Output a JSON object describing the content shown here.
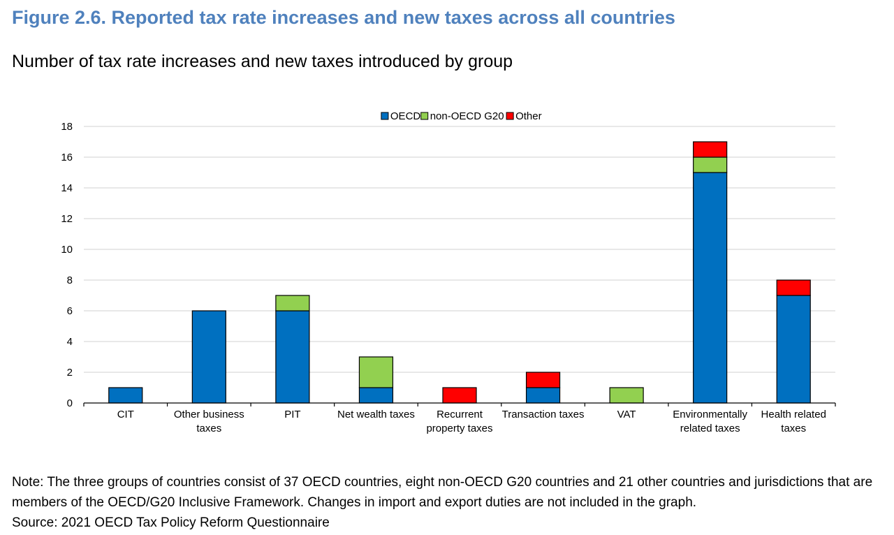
{
  "figure": {
    "title": "Figure 2.6. Reported tax rate increases and new taxes across all countries",
    "subtitle": "Number of tax rate increases and new taxes introduced by group",
    "note": "Note: The three groups of countries consist of 37 OECD countries, eight non-OECD G20 countries and 21 other countries and jurisdictions that are members of the OECD/G20 Inclusive Framework. Changes in import and export duties are not included in the graph.",
    "source": "Source: 2021 OECD Tax Policy Reform Questionnaire"
  },
  "chart_data": {
    "type": "bar",
    "stacked": true,
    "categories": [
      [
        "CIT"
      ],
      [
        "Other business",
        "taxes"
      ],
      [
        "PIT"
      ],
      [
        "Net wealth taxes"
      ],
      [
        "Recurrent",
        "property taxes"
      ],
      [
        "Transaction taxes"
      ],
      [
        "VAT"
      ],
      [
        "Environmentally",
        "related taxes"
      ],
      [
        "Health related",
        "taxes"
      ]
    ],
    "series": [
      {
        "name": "OECD",
        "color": "#0070c0",
        "values": [
          1,
          6,
          6,
          1,
          0,
          1,
          0,
          15,
          7
        ]
      },
      {
        "name": "non-OECD G20",
        "color": "#92d050",
        "values": [
          0,
          0,
          1,
          2,
          0,
          0,
          1,
          1,
          0
        ]
      },
      {
        "name": "Other",
        "color": "#ff0000",
        "values": [
          0,
          0,
          0,
          0,
          1,
          1,
          0,
          1,
          1
        ]
      }
    ],
    "ylim": [
      0,
      18
    ],
    "yticks": [
      "0",
      "2",
      "4",
      "6",
      "8",
      "10",
      "12",
      "14",
      "16",
      "18"
    ],
    "grid": true,
    "legend": "top-center"
  }
}
